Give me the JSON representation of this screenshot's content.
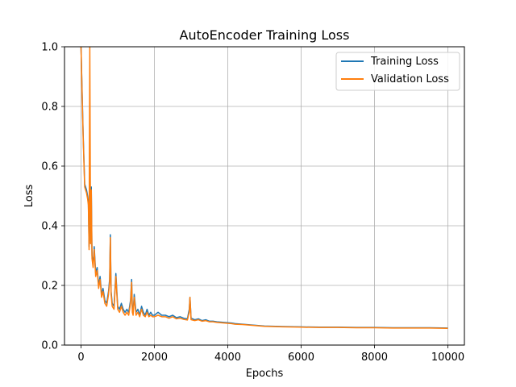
{
  "chart_data": {
    "type": "line",
    "title": "AutoEncoder Training Loss",
    "xlabel": "Epochs",
    "ylabel": "Loss",
    "xlim": [
      -450,
      10450
    ],
    "ylim": [
      0.0,
      1.0
    ],
    "x_ticks": [
      0,
      2000,
      4000,
      6000,
      8000,
      10000
    ],
    "y_ticks": [
      0.0,
      0.2,
      0.4,
      0.6,
      0.8,
      1.0
    ],
    "x_tick_labels": [
      "0",
      "2000",
      "4000",
      "6000",
      "8000",
      "10000"
    ],
    "y_tick_labels": [
      "0.0",
      "0.2",
      "0.4",
      "0.6",
      "0.8",
      "1.0"
    ],
    "grid": true,
    "legend": "top-right",
    "series": [
      {
        "name": "Training Loss",
        "color": "#1f77b4",
        "x": [
          0,
          30,
          60,
          100,
          150,
          180,
          200,
          220,
          240,
          260,
          280,
          300,
          330,
          360,
          400,
          440,
          480,
          520,
          560,
          600,
          650,
          700,
          750,
          780,
          800,
          820,
          850,
          900,
          950,
          1000,
          1050,
          1100,
          1150,
          1200,
          1250,
          1300,
          1350,
          1380,
          1400,
          1420,
          1450,
          1500,
          1550,
          1600,
          1650,
          1700,
          1750,
          1800,
          1850,
          1900,
          1950,
          2000,
          2100,
          2200,
          2300,
          2400,
          2500,
          2600,
          2700,
          2800,
          2900,
          2950,
          2970,
          3000,
          3100,
          3200,
          3300,
          3400,
          3500,
          3600,
          3700,
          3800,
          3900,
          4000,
          4100,
          4200,
          4400,
          4600,
          4800,
          5000,
          5500,
          6000,
          6500,
          7000,
          7500,
          8000,
          8500,
          9000,
          9500,
          10000
        ],
        "values": [
          1.0,
          0.85,
          0.7,
          0.54,
          0.52,
          0.5,
          0.48,
          0.33,
          0.59,
          0.35,
          0.53,
          0.3,
          0.27,
          0.33,
          0.24,
          0.26,
          0.2,
          0.23,
          0.17,
          0.19,
          0.15,
          0.14,
          0.18,
          0.22,
          0.37,
          0.18,
          0.14,
          0.13,
          0.24,
          0.13,
          0.12,
          0.14,
          0.12,
          0.11,
          0.12,
          0.11,
          0.15,
          0.22,
          0.12,
          0.11,
          0.17,
          0.11,
          0.12,
          0.1,
          0.13,
          0.11,
          0.1,
          0.12,
          0.1,
          0.11,
          0.1,
          0.1,
          0.11,
          0.1,
          0.1,
          0.095,
          0.1,
          0.092,
          0.095,
          0.09,
          0.088,
          0.12,
          0.16,
          0.09,
          0.085,
          0.088,
          0.082,
          0.085,
          0.08,
          0.08,
          0.078,
          0.077,
          0.076,
          0.075,
          0.074,
          0.072,
          0.07,
          0.068,
          0.066,
          0.064,
          0.062,
          0.061,
          0.06,
          0.06,
          0.059,
          0.059,
          0.058,
          0.058,
          0.058,
          0.057
        ]
      },
      {
        "name": "Validation Loss",
        "color": "#ff7f0e",
        "x": [
          0,
          30,
          60,
          100,
          150,
          180,
          200,
          220,
          240,
          260,
          280,
          300,
          330,
          360,
          400,
          440,
          480,
          520,
          560,
          600,
          650,
          700,
          750,
          780,
          800,
          820,
          850,
          900,
          950,
          1000,
          1050,
          1100,
          1150,
          1200,
          1250,
          1300,
          1350,
          1380,
          1400,
          1420,
          1450,
          1500,
          1550,
          1600,
          1650,
          1700,
          1750,
          1800,
          1850,
          1900,
          1950,
          2000,
          2100,
          2200,
          2300,
          2400,
          2500,
          2600,
          2700,
          2800,
          2900,
          2950,
          2970,
          3000,
          3100,
          3200,
          3300,
          3400,
          3500,
          3600,
          3700,
          3800,
          3900,
          4000,
          4100,
          4200,
          4400,
          4600,
          4800,
          5000,
          5500,
          6000,
          6500,
          7000,
          7500,
          8000,
          8500,
          9000,
          9500,
          10000
        ],
        "values": [
          1.0,
          0.84,
          0.69,
          0.53,
          0.51,
          0.49,
          0.47,
          0.32,
          1.0,
          0.34,
          0.52,
          0.29,
          0.26,
          0.32,
          0.23,
          0.25,
          0.19,
          0.22,
          0.16,
          0.18,
          0.14,
          0.13,
          0.17,
          0.21,
          0.36,
          0.17,
          0.13,
          0.12,
          0.23,
          0.12,
          0.11,
          0.13,
          0.11,
          0.1,
          0.11,
          0.1,
          0.14,
          0.21,
          0.11,
          0.1,
          0.16,
          0.1,
          0.11,
          0.095,
          0.12,
          0.1,
          0.095,
          0.11,
          0.095,
          0.1,
          0.095,
          0.095,
          0.1,
          0.095,
          0.095,
          0.09,
          0.095,
          0.088,
          0.09,
          0.086,
          0.084,
          0.11,
          0.16,
          0.085,
          0.082,
          0.085,
          0.08,
          0.082,
          0.078,
          0.078,
          0.076,
          0.075,
          0.074,
          0.073,
          0.072,
          0.07,
          0.069,
          0.067,
          0.065,
          0.063,
          0.061,
          0.06,
          0.059,
          0.059,
          0.058,
          0.058,
          0.057,
          0.057,
          0.057,
          0.056
        ]
      }
    ]
  }
}
